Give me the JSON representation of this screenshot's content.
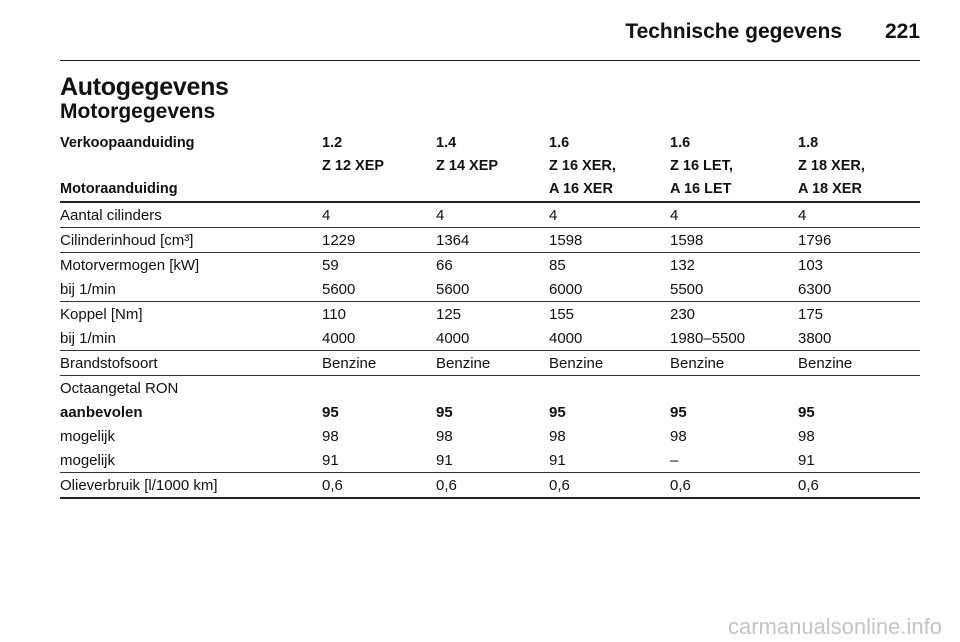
{
  "header": {
    "title": "Technische gegevens",
    "page": "221"
  },
  "heading": "Autogegevens",
  "subheading": "Motorgegevens",
  "table": {
    "header": [
      [
        "Verkoopaanduiding",
        "1.2",
        "1.4",
        "1.6",
        "1.6",
        "1.8"
      ],
      [
        "Motoraanduiding",
        "Z 12 XEP",
        "Z 14 XEP",
        "Z 16 XER,\nA 16 XER",
        "Z 16 LET,\nA 16 LET",
        "Z 18 XER,\nA 18 XER"
      ]
    ],
    "groups": [
      [
        {
          "cells": [
            "Aantal cilinders",
            "4",
            "4",
            "4",
            "4",
            "4"
          ]
        }
      ],
      [
        {
          "cells": [
            "Cilinderinhoud [cm³]",
            "1229",
            "1364",
            "1598",
            "1598",
            "1796"
          ]
        }
      ],
      [
        {
          "cells": [
            "Motorvermogen [kW]",
            "59",
            "66",
            "85",
            "132",
            "103"
          ]
        },
        {
          "cells": [
            "bij 1/min",
            "5600",
            "5600",
            "6000",
            "5500",
            "6300"
          ]
        }
      ],
      [
        {
          "cells": [
            "Koppel [Nm]",
            "110",
            "125",
            "155",
            "230",
            "175"
          ]
        },
        {
          "cells": [
            "bij 1/min",
            "4000",
            "4000",
            "4000",
            "1980–5500",
            "3800"
          ]
        }
      ],
      [
        {
          "cells": [
            "Brandstofsoort",
            "Benzine",
            "Benzine",
            "Benzine",
            "Benzine",
            "Benzine"
          ]
        }
      ],
      [
        {
          "cells": [
            "Octaangetal RON"
          ]
        },
        {
          "cells": [
            "aanbevolen",
            "95",
            "95",
            "95",
            "95",
            "95"
          ],
          "bold": true
        },
        {
          "cells": [
            "mogelijk",
            "98",
            "98",
            "98",
            "98",
            "98"
          ]
        },
        {
          "cells": [
            "mogelijk",
            "91",
            "91",
            "91",
            "–",
            "91"
          ]
        }
      ],
      [
        {
          "cells": [
            "Olieverbruik [l/1000 km]",
            "0,6",
            "0,6",
            "0,6",
            "0,6",
            "0,6"
          ]
        }
      ]
    ]
  },
  "watermark": "carmanualsonline.info"
}
